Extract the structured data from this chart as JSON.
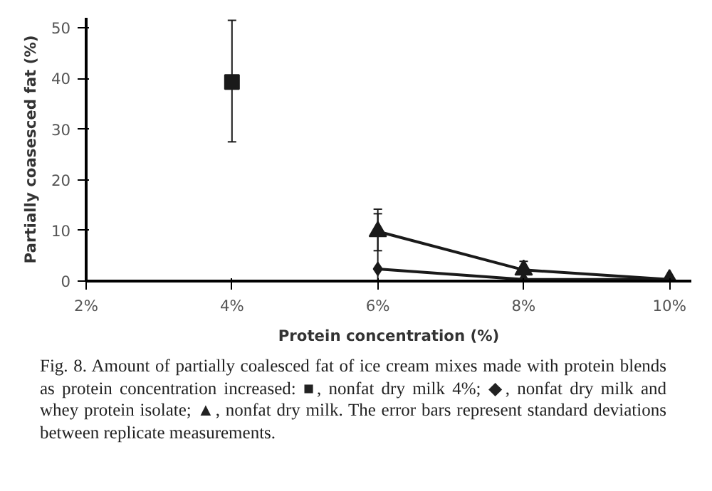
{
  "chart_data": {
    "type": "line",
    "xlabel": "Protein concentration (%)",
    "ylabel": "Partially coasesced fat (%)",
    "xlim": [
      2,
      10.3
    ],
    "xticks": [
      {
        "value": 2,
        "label": "2%"
      },
      {
        "value": 4,
        "label": "4%"
      },
      {
        "value": 6,
        "label": "6%"
      },
      {
        "value": 8,
        "label": "8%"
      },
      {
        "value": 10,
        "label": "10%"
      }
    ],
    "ylim": [
      0,
      52
    ],
    "yticks": [
      0,
      10,
      20,
      30,
      40,
      50
    ],
    "grid": false,
    "line_style": "solid",
    "series": [
      {
        "color": "#1a1a1a",
        "marker": "square",
        "type": "scatter",
        "x": [
          4
        ],
        "values": [
          39.3
        ],
        "errors": [
          [
            27.5,
            51.5
          ]
        ]
      },
      {
        "color": "#1a1a1a",
        "marker": "diamond",
        "x": [
          6,
          8,
          10
        ],
        "values": [
          2.4,
          0.3,
          0.3
        ],
        "errors": [
          [
            0,
            13.3
          ],
          null,
          null
        ]
      },
      {
        "color": "#1a1a1a",
        "marker": "triangle",
        "x": [
          6,
          8,
          10
        ],
        "values": [
          9.8,
          2.2,
          0.3
        ],
        "errors": [
          [
            6.0,
            14.2
          ],
          [
            2.2,
            3.9
          ],
          null
        ]
      }
    ],
    "annotations": [
      "Fig. 8. Amount of partially coalesced fat of ice cream mixes made with protein blends as protein concentration increased: ■, nonfat dry milk 4%; ◆, nonfat dry milk and whey protein isolate; ▲, nonfat dry milk. The error bars represent standard deviations between replicate measurements."
    ]
  }
}
